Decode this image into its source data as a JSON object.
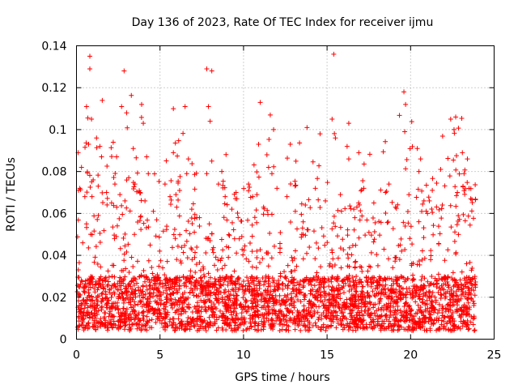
{
  "chart_data": {
    "type": "scatter",
    "title": "Day 136 of 2023, Rate Of TEC Index for receiver ijmu",
    "xlabel": "GPS time / hours",
    "ylabel": "ROTI / TECUs",
    "xlim": [
      0,
      25
    ],
    "ylim": [
      0,
      0.14
    ],
    "x_ticks": [
      0,
      5,
      10,
      15,
      20,
      25
    ],
    "x_tick_labels": [
      "0",
      "5",
      "10",
      "15",
      "20",
      "25"
    ],
    "y_ticks": [
      0,
      0.02,
      0.04,
      0.06,
      0.08,
      0.1,
      0.12,
      0.14
    ],
    "y_tick_labels": [
      "0",
      "0.02",
      "0.04",
      "0.06",
      "0.08",
      "0.1",
      "0.12",
      "0.14"
    ],
    "grid": true,
    "marker": "plus",
    "series": [
      {
        "name": "ROTI",
        "color": "#ff0000",
        "points": [
          [
            0.8,
            0.135
          ],
          [
            0.8,
            0.129
          ],
          [
            2.85,
            0.128
          ],
          [
            7.8,
            0.129
          ],
          [
            8.1,
            0.128
          ],
          [
            15.4,
            0.136
          ],
          [
            0.6,
            0.111
          ],
          [
            0.9,
            0.105
          ],
          [
            2.7,
            0.111
          ],
          [
            3.0,
            0.108
          ],
          [
            3.9,
            0.112
          ],
          [
            4.0,
            0.103
          ],
          [
            5.8,
            0.11
          ],
          [
            6.5,
            0.111
          ],
          [
            7.9,
            0.111
          ],
          [
            8.0,
            0.104
          ],
          [
            11.0,
            0.113
          ],
          [
            11.6,
            0.107
          ],
          [
            11.8,
            0.1
          ],
          [
            13.8,
            0.101
          ],
          [
            15.3,
            0.105
          ],
          [
            16.3,
            0.103
          ],
          [
            19.6,
            0.118
          ],
          [
            19.7,
            0.112
          ],
          [
            19.65,
            0.099
          ],
          [
            22.4,
            0.105
          ],
          [
            22.7,
            0.106
          ],
          [
            22.6,
            0.1
          ],
          [
            0.1,
            0.089
          ],
          [
            0.3,
            0.082
          ],
          [
            1.2,
            0.096
          ],
          [
            1.4,
            0.092
          ],
          [
            1.5,
            0.087
          ],
          [
            2.2,
            0.094
          ],
          [
            2.4,
            0.087
          ],
          [
            3.4,
            0.091
          ],
          [
            4.2,
            0.087
          ],
          [
            4.3,
            0.079
          ],
          [
            5.8,
            0.089
          ],
          [
            6.7,
            0.086
          ],
          [
            6.6,
            0.079
          ],
          [
            7.8,
            0.079
          ],
          [
            8.1,
            0.085
          ],
          [
            8.7,
            0.08
          ],
          [
            10.9,
            0.093
          ],
          [
            11.4,
            0.088
          ],
          [
            11.5,
            0.082
          ],
          [
            11.7,
            0.079
          ],
          [
            12.8,
            0.093
          ],
          [
            15.5,
            0.096
          ],
          [
            16.2,
            0.092
          ],
          [
            16.3,
            0.086
          ],
          [
            16.9,
            0.089
          ],
          [
            20.4,
            0.091
          ],
          [
            20.6,
            0.086
          ],
          [
            20.5,
            0.08
          ],
          [
            23.1,
            0.089
          ],
          [
            23.4,
            0.086
          ],
          [
            23.2,
            0.079
          ],
          [
            21.8,
            0.081
          ],
          [
            0.2,
            0.072
          ],
          [
            0.5,
            0.068
          ],
          [
            1.0,
            0.076
          ],
          [
            1.3,
            0.073
          ],
          [
            1.8,
            0.07
          ],
          [
            2.3,
            0.074
          ],
          [
            2.6,
            0.069
          ],
          [
            2.9,
            0.066
          ],
          [
            3.5,
            0.074
          ],
          [
            3.8,
            0.07
          ],
          [
            4.1,
            0.066
          ],
          [
            4.6,
            0.061
          ],
          [
            5.3,
            0.074
          ],
          [
            5.6,
            0.068
          ],
          [
            6.0,
            0.063
          ],
          [
            6.9,
            0.062
          ],
          [
            7.2,
            0.058
          ],
          [
            8.5,
            0.074
          ],
          [
            8.9,
            0.068
          ],
          [
            9.3,
            0.062
          ],
          [
            9.6,
            0.067
          ],
          [
            10.3,
            0.074
          ],
          [
            10.8,
            0.069
          ],
          [
            11.2,
            0.063
          ],
          [
            12.0,
            0.072
          ],
          [
            12.6,
            0.068
          ],
          [
            13.1,
            0.061
          ],
          [
            13.7,
            0.064
          ],
          [
            14.3,
            0.072
          ],
          [
            14.9,
            0.066
          ],
          [
            15.8,
            0.069
          ],
          [
            16.6,
            0.062
          ],
          [
            17.2,
            0.072
          ],
          [
            17.8,
            0.065
          ],
          [
            18.5,
            0.07
          ],
          [
            19.1,
            0.063
          ],
          [
            19.9,
            0.069
          ],
          [
            20.8,
            0.066
          ],
          [
            21.3,
            0.071
          ],
          [
            21.9,
            0.064
          ],
          [
            22.8,
            0.07
          ],
          [
            23.6,
            0.067
          ],
          [
            23.5,
            0.072
          ]
        ]
      }
    ]
  }
}
